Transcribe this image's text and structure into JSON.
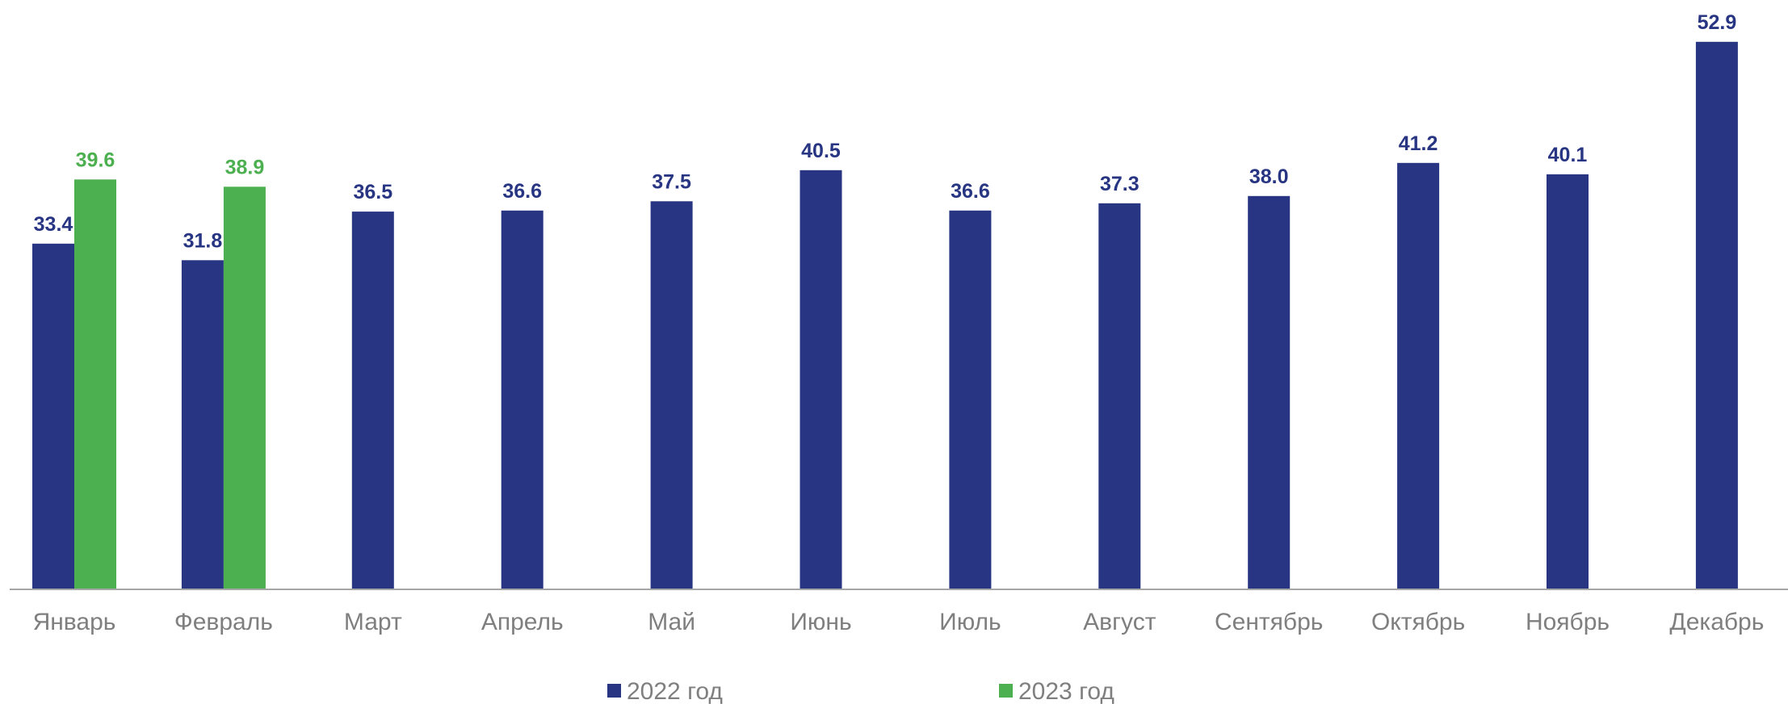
{
  "chart_data": {
    "type": "bar",
    "categories": [
      "Январь",
      "Февраль",
      "Март",
      "Апрель",
      "Май",
      "Июнь",
      "Июль",
      "Август",
      "Сентябрь",
      "Октябрь",
      "Ноябрь",
      "Декабрь"
    ],
    "series": [
      {
        "name": "2022 год",
        "color": "#283583",
        "values": [
          33.4,
          31.8,
          36.5,
          36.6,
          37.5,
          40.5,
          36.6,
          37.3,
          38.0,
          41.2,
          40.1,
          52.9
        ],
        "labels": [
          "33.4",
          "31.8",
          "36.5",
          "36.6",
          "37.5",
          "40.5",
          "36.6",
          "37.3",
          "38.0",
          "41.2",
          "40.1",
          "52.9"
        ]
      },
      {
        "name": "2023 год",
        "color": "#4caf50",
        "values": [
          39.6,
          38.9,
          null,
          null,
          null,
          null,
          null,
          null,
          null,
          null,
          null,
          null
        ],
        "labels": [
          "39.6",
          "38.9",
          null,
          null,
          null,
          null,
          null,
          null,
          null,
          null,
          null,
          null
        ]
      }
    ],
    "ylim": [
      0,
      55
    ],
    "grid": false,
    "legend_position": "bottom",
    "xlabel": "",
    "ylabel": ""
  }
}
